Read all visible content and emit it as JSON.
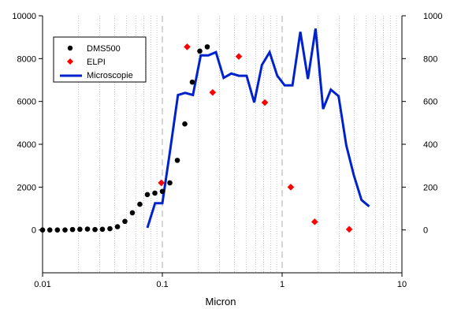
{
  "chart_data": {
    "type": "scatter",
    "xlabel": "Micron",
    "x_scale": "log",
    "xlim": [
      0.01,
      10
    ],
    "x_ticks": [
      0.01,
      0.1,
      1,
      10
    ],
    "x_tick_labels": [
      "0.01",
      "0.1",
      "1",
      "10"
    ],
    "ylim_left": [
      -2000,
      10000
    ],
    "y_ticks_left": [
      0,
      2000,
      4000,
      6000,
      8000,
      10000
    ],
    "y_tick_labels_left": [
      "0",
      "2000",
      "4000",
      "6000",
      "8000",
      "10000"
    ],
    "ylim_right": [
      -200,
      1000
    ],
    "y_ticks_right": [
      0,
      200,
      400,
      600,
      800,
      1000
    ],
    "y_tick_labels_right": [
      "0",
      "200",
      "400",
      "600",
      "800",
      "1000"
    ],
    "grid": "vertical dotted minor lines, dashed at decades",
    "legend_position": "top-left",
    "series": [
      {
        "name": "DMS500",
        "type": "scatter",
        "marker": "circle",
        "color": "#000000",
        "axis": "left",
        "x": [
          0.01,
          0.0115,
          0.0133,
          0.0154,
          0.0178,
          0.0205,
          0.0237,
          0.0274,
          0.0316,
          0.0365,
          0.0422,
          0.0487,
          0.0562,
          0.0649,
          0.075,
          0.0866,
          0.1,
          0.1155,
          0.1334,
          0.154,
          0.1778,
          0.2054,
          0.2371
        ],
        "y": [
          0,
          0,
          0,
          0,
          20,
          30,
          40,
          20,
          30,
          60,
          150,
          400,
          800,
          1200,
          1650,
          1720,
          1800,
          2200,
          3250,
          4950,
          6900,
          8350,
          8550
        ]
      },
      {
        "name": "ELPI",
        "type": "scatter",
        "marker": "diamond",
        "color": "#ff0000",
        "axis": "left",
        "x": [
          0.098,
          0.161,
          0.263,
          0.435,
          0.717,
          1.18,
          1.87,
          3.63
        ],
        "y": [
          2200,
          8550,
          6420,
          8100,
          5950,
          2000,
          380,
          30
        ]
      },
      {
        "name": "Microscopie",
        "type": "line",
        "color": "#0022cc",
        "axis": "right",
        "x": [
          0.075,
          0.087,
          0.1,
          0.116,
          0.135,
          0.155,
          0.18,
          0.209,
          0.242,
          0.28,
          0.325,
          0.376,
          0.436,
          0.505,
          0.585,
          0.678,
          0.786,
          0.91,
          1.05,
          1.22,
          1.42,
          1.64,
          1.9,
          2.2,
          2.55,
          2.96,
          3.43,
          3.97,
          4.6,
          5.33
        ],
        "y": [
          10,
          125,
          125,
          370,
          630,
          640,
          630,
          815,
          815,
          830,
          710,
          730,
          720,
          720,
          595,
          770,
          830,
          720,
          675,
          675,
          925,
          705,
          940,
          565,
          655,
          625,
          395,
          255,
          140,
          110
        ]
      }
    ]
  }
}
